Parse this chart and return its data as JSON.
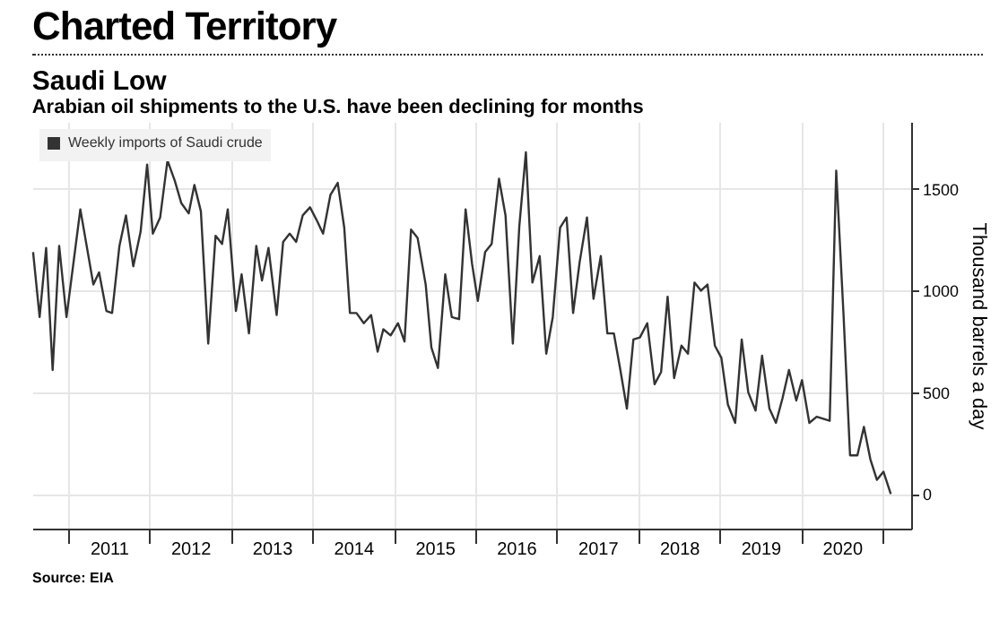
{
  "chart_data": {
    "type": "line",
    "title": "Saudi Low",
    "subtitle": "Arabian oil shipments to the U.S. have been declining for months",
    "ylabel": "Thousand barrels a day",
    "annotations": [
      "Charted Territory",
      "Source: EIA"
    ],
    "xlim": [
      2010.56,
      2021.35
    ],
    "ylim": [
      -170,
      1830
    ],
    "xticks": [
      {
        "value": 2011,
        "label": null
      },
      {
        "value": 2011.5,
        "label": "2011"
      },
      {
        "value": 2012,
        "label": null
      },
      {
        "value": 2012.5,
        "label": "2012"
      },
      {
        "value": 2013,
        "label": null
      },
      {
        "value": 2013.5,
        "label": "2013"
      },
      {
        "value": 2014,
        "label": null
      },
      {
        "value": 2014.5,
        "label": "2014"
      },
      {
        "value": 2015,
        "label": null
      },
      {
        "value": 2015.5,
        "label": "2015"
      },
      {
        "value": 2016,
        "label": null
      },
      {
        "value": 2016.5,
        "label": "2016"
      },
      {
        "value": 2017,
        "label": null
      },
      {
        "value": 2017.5,
        "label": "2017"
      },
      {
        "value": 2018,
        "label": null
      },
      {
        "value": 2018.5,
        "label": "2018"
      },
      {
        "value": 2019,
        "label": null
      },
      {
        "value": 2019.5,
        "label": "2019"
      },
      {
        "value": 2020,
        "label": null
      },
      {
        "value": 2020.5,
        "label": "2020"
      },
      {
        "value": 2021,
        "label": null
      }
    ],
    "yticks": [
      0,
      500,
      1000,
      1500
    ],
    "grid": true,
    "legend": "top left",
    "series": [
      {
        "name": "Weekly imports of Saudi crude",
        "color": "#333333",
        "x": [
          2010.57,
          2010.65,
          2010.73,
          2010.81,
          2010.89,
          2010.98,
          2011.15,
          2011.31,
          2011.38,
          2011.47,
          2011.54,
          2011.63,
          2011.71,
          2011.8,
          2011.89,
          2011.97,
          2012.04,
          2012.13,
          2012.22,
          2012.31,
          2012.39,
          2012.48,
          2012.55,
          2012.63,
          2012.72,
          2012.81,
          2012.89,
          2012.96,
          2013.06,
          2013.13,
          2013.22,
          2013.31,
          2013.38,
          2013.46,
          2013.56,
          2013.64,
          2013.72,
          2013.8,
          2013.88,
          2013.97,
          2014.06,
          2014.13,
          2014.22,
          2014.31,
          2014.39,
          2014.46,
          2014.54,
          2014.63,
          2014.72,
          2014.8,
          2014.87,
          2014.96,
          2015.05,
          2015.13,
          2015.21,
          2015.29,
          2015.39,
          2015.46,
          2015.54,
          2015.63,
          2015.71,
          2015.8,
          2015.88,
          2015.96,
          2016.03,
          2016.12,
          2016.2,
          2016.29,
          2016.37,
          2016.46,
          2016.54,
          2016.62,
          2016.7,
          2016.79,
          2016.87,
          2016.95,
          2017.04,
          2017.12,
          2017.2,
          2017.28,
          2017.37,
          2017.45,
          2017.54,
          2017.62,
          2017.7,
          2017.78,
          2017.86,
          2017.94,
          2018.02,
          2018.11,
          2018.2,
          2018.28,
          2018.36,
          2018.44,
          2018.53,
          2018.61,
          2018.69,
          2018.77,
          2018.85,
          2018.94,
          2019.02,
          2019.1,
          2019.19,
          2019.27,
          2019.35,
          2019.44,
          2019.52,
          2019.61,
          2019.69,
          2019.77,
          2019.85,
          2019.94,
          2020.01,
          2020.1,
          2020.19,
          2020.27,
          2020.35,
          2020.43,
          2020.52,
          2020.6,
          2020.69,
          2020.77,
          2020.85,
          2020.93,
          2021.01,
          2021.1
        ],
        "values": [
          1190,
          870,
          1210,
          610,
          1220,
          870,
          1400,
          1030,
          1090,
          900,
          890,
          1220,
          1370,
          1120,
          1290,
          1620,
          1280,
          1360,
          1640,
          1540,
          1430,
          1380,
          1520,
          1390,
          740,
          1270,
          1230,
          1400,
          900,
          1080,
          790,
          1220,
          1050,
          1210,
          880,
          1240,
          1280,
          1240,
          1370,
          1410,
          1340,
          1280,
          1470,
          1530,
          1310,
          890,
          890,
          840,
          880,
          700,
          810,
          780,
          840,
          750,
          1300,
          1260,
          1030,
          720,
          620,
          1080,
          870,
          860,
          1400,
          1130,
          950,
          1190,
          1230,
          1550,
          1370,
          740,
          1320,
          1680,
          1040,
          1170,
          690,
          870,
          1310,
          1360,
          890,
          1140,
          1360,
          960,
          1170,
          790,
          790,
          610,
          420,
          760,
          770,
          840,
          540,
          600,
          970,
          570,
          730,
          690,
          1040,
          1000,
          1030,
          730,
          670,
          440,
          350,
          760,
          500,
          410,
          680,
          420,
          350,
          470,
          610,
          460,
          560,
          350,
          380,
          370,
          360,
          1590,
          880,
          190,
          190,
          330,
          170,
          70,
          110,
          0
        ]
      }
    ]
  }
}
